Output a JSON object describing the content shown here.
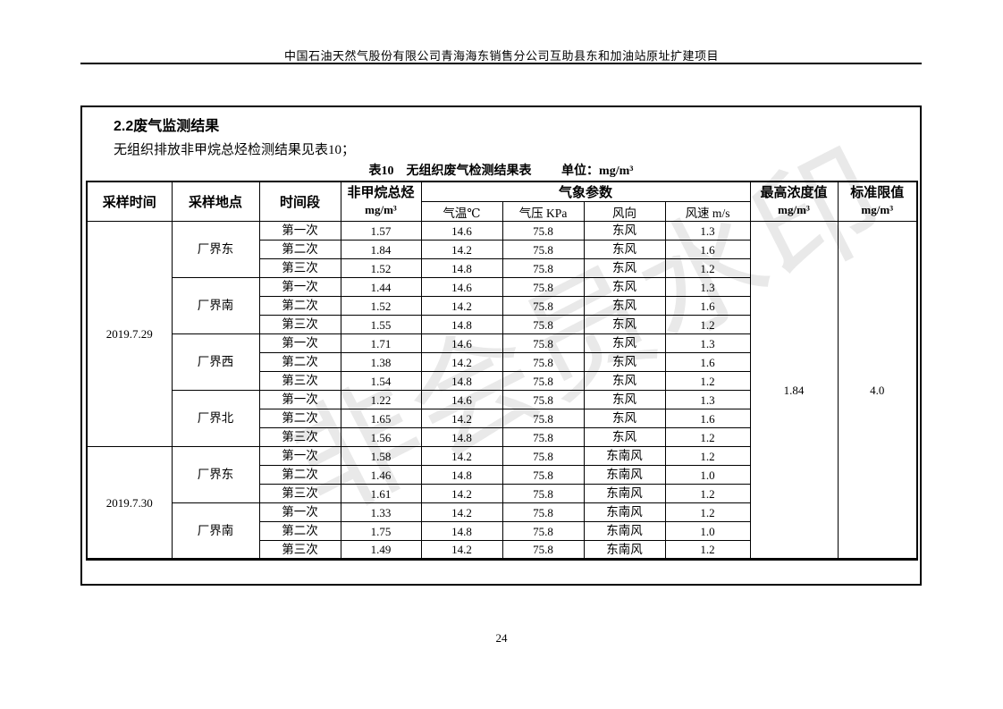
{
  "header": {
    "title": "中国石油天然气股份有限公司青海海东销售分公司互助县东和加油站原址扩建项目"
  },
  "watermark": {
    "text": "非会员水印",
    "color": "#e9e9e9"
  },
  "section": {
    "heading": "2.2废气监测结果",
    "intro": "无组织排放非甲烷总烃检测结果见表10；"
  },
  "table": {
    "caption": "表10　无组织废气检测结果表",
    "unit_label": "单位：mg/m³",
    "columns": {
      "time": "采样时间",
      "location": "采样地点",
      "period": "时间段",
      "nmhc": "非甲烷总烃",
      "unit": "mg/m³",
      "weather": "气象参数",
      "sub": [
        "气温℃",
        "气压 KPa",
        "风向",
        "风速 m/s"
      ],
      "max": "最高浓度值",
      "limit": "标准限值"
    },
    "max_value": "1.84",
    "limit_value": "4.0",
    "groups": [
      {
        "date": "2019.7.29",
        "locations": [
          {
            "name": "厂界东",
            "rows": [
              [
                "第一次",
                "1.57",
                "14.6",
                "75.8",
                "东风",
                "1.3"
              ],
              [
                "第二次",
                "1.84",
                "14.2",
                "75.8",
                "东风",
                "1.6"
              ],
              [
                "第三次",
                "1.52",
                "14.8",
                "75.8",
                "东风",
                "1.2"
              ]
            ]
          },
          {
            "name": "厂界南",
            "rows": [
              [
                "第一次",
                "1.44",
                "14.6",
                "75.8",
                "东风",
                "1.3"
              ],
              [
                "第二次",
                "1.52",
                "14.2",
                "75.8",
                "东风",
                "1.6"
              ],
              [
                "第三次",
                "1.55",
                "14.8",
                "75.8",
                "东风",
                "1.2"
              ]
            ]
          },
          {
            "name": "厂界西",
            "rows": [
              [
                "第一次",
                "1.71",
                "14.6",
                "75.8",
                "东风",
                "1.3"
              ],
              [
                "第二次",
                "1.38",
                "14.2",
                "75.8",
                "东风",
                "1.6"
              ],
              [
                "第三次",
                "1.54",
                "14.8",
                "75.8",
                "东风",
                "1.2"
              ]
            ]
          },
          {
            "name": "厂界北",
            "rows": [
              [
                "第一次",
                "1.22",
                "14.6",
                "75.8",
                "东风",
                "1.3"
              ],
              [
                "第二次",
                "1.65",
                "14.2",
                "75.8",
                "东风",
                "1.6"
              ],
              [
                "第三次",
                "1.56",
                "14.8",
                "75.8",
                "东风",
                "1.2"
              ]
            ]
          }
        ]
      },
      {
        "date": "2019.7.30",
        "locations": [
          {
            "name": "厂界东",
            "rows": [
              [
                "第一次",
                "1.58",
                "14.2",
                "75.8",
                "东南风",
                "1.2"
              ],
              [
                "第二次",
                "1.46",
                "14.8",
                "75.8",
                "东南风",
                "1.0"
              ],
              [
                "第三次",
                "1.61",
                "14.2",
                "75.8",
                "东南风",
                "1.2"
              ]
            ]
          },
          {
            "name": "厂界南",
            "rows": [
              [
                "第一次",
                "1.33",
                "14.2",
                "75.8",
                "东南风",
                "1.2"
              ],
              [
                "第二次",
                "1.75",
                "14.8",
                "75.8",
                "东南风",
                "1.0"
              ],
              [
                "第三次",
                "1.49",
                "14.2",
                "75.8",
                "东南风",
                "1.2"
              ]
            ]
          }
        ]
      }
    ]
  },
  "footer": {
    "page_number": "24"
  }
}
